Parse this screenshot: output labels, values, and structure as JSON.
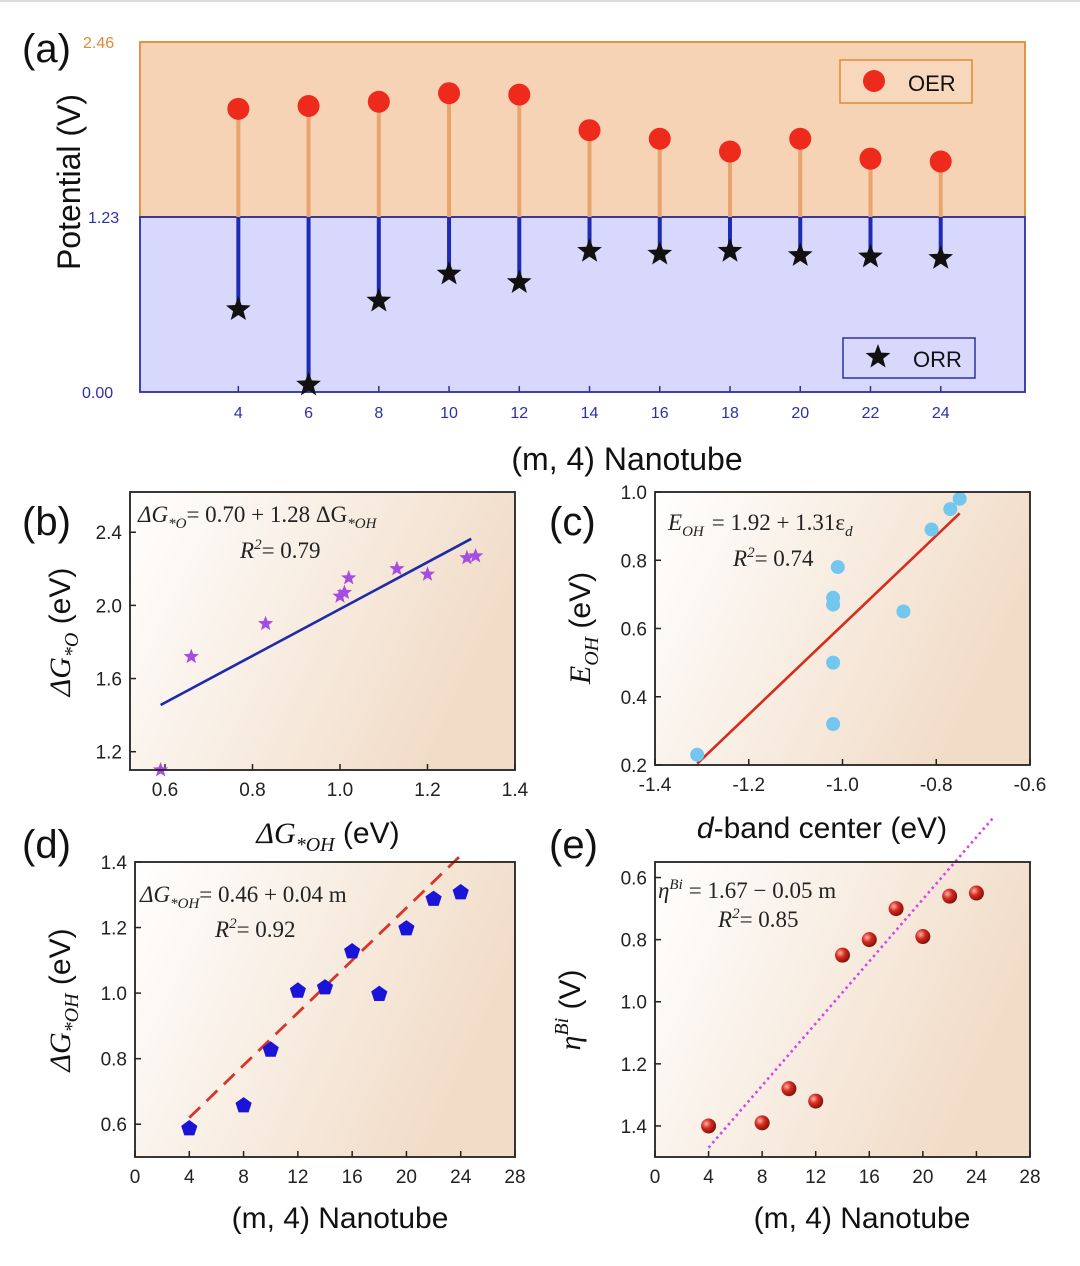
{
  "colors": {
    "oer_fill": "#f5d3b4",
    "orr_fill": "#d7d8fb",
    "oer_dot": "#ee2a1c",
    "oer_stem": "#e8a46c",
    "orr_stem": "#1d2bb5",
    "star": "#111111",
    "b_star": "#a64ce0",
    "b_line": "#1f2aa8",
    "c_dot": "#73c6ee",
    "c_line": "#d52c1c",
    "d_pent": "#1a14d8",
    "d_line": "#d8352a",
    "e_ball": "#d62a20",
    "e_line": "#d445e6",
    "axis_orange": "#e28a35",
    "axis_blue": "#2c30a6"
  },
  "chart_data": [
    {
      "id": "a",
      "panel_label": "(a)",
      "type": "scatter",
      "title": "",
      "xlabel": "(m, 4) Nanotube",
      "ylabel": "Potential (V)",
      "ylim": [
        0,
        2.46
      ],
      "xlim": [
        1.2,
        26.4
      ],
      "yticks": [
        "0.00",
        "1.23",
        "2.46"
      ],
      "xticks": [
        "4",
        "6",
        "8",
        "10",
        "12",
        "14",
        "16",
        "18",
        "20",
        "22",
        "24"
      ],
      "x": [
        4,
        6,
        8,
        10,
        12,
        14,
        16,
        18,
        20,
        22,
        24
      ],
      "series": [
        {
          "name": "OER",
          "values": [
            1.99,
            2.01,
            2.04,
            2.1,
            2.09,
            1.84,
            1.78,
            1.69,
            1.78,
            1.64,
            1.62
          ]
        },
        {
          "name": "ORR",
          "values": [
            0.58,
            0.05,
            0.64,
            0.83,
            0.77,
            0.99,
            0.97,
            0.99,
            0.96,
            0.95,
            0.94
          ]
        }
      ],
      "reference_line": 1.23,
      "legend": [
        "OER",
        "ORR"
      ]
    },
    {
      "id": "b",
      "panel_label": "(b)",
      "type": "scatter",
      "xlabel_main": "ΔG",
      "xlabel_sub": "*OH",
      "xlabel_unit": " (eV)",
      "ylabel_main": "ΔG",
      "ylabel_sub": "*O",
      "ylabel_unit": " (eV)",
      "xlim": [
        0.52,
        1.4
      ],
      "ylim": [
        1.1,
        2.62
      ],
      "xticks": [
        0.6,
        0.8,
        1.0,
        1.2,
        1.4
      ],
      "xtick_labels": [
        "0.6",
        "0.8",
        "1.0",
        "1.2",
        "1.4"
      ],
      "yticks": [
        1.2,
        1.6,
        2.0,
        2.4
      ],
      "ytick_labels": [
        "1.2",
        "1.6",
        "2.0",
        "2.4"
      ],
      "x": [
        0.59,
        0.66,
        0.83,
        1.0,
        1.01,
        1.02,
        1.13,
        1.2,
        1.29,
        1.31
      ],
      "y": [
        1.1,
        1.72,
        1.9,
        2.05,
        2.07,
        2.15,
        2.2,
        2.17,
        2.26,
        2.27
      ],
      "fit": {
        "intercept": 0.7,
        "slope": 1.28,
        "x_range": [
          0.59,
          1.3
        ]
      },
      "equation_lhs": "ΔG",
      "equation_lhs_sub": "*O",
      "equation_rhs": "= 0.70 + 1.28 ΔG",
      "equation_rhs_sub": "*OH",
      "r2_label": "R",
      "r2_value": "= 0.79"
    },
    {
      "id": "c",
      "panel_label": "(c)",
      "type": "scatter",
      "xlabel_italic": "d",
      "xlabel_rest": "-band center (eV)",
      "ylabel_main": "E",
      "ylabel_sub": "OH",
      "ylabel_unit": " (eV)",
      "xlim": [
        -1.4,
        -0.6
      ],
      "ylim": [
        0.2,
        1.0
      ],
      "xticks": [
        -1.4,
        -1.2,
        -1.0,
        -0.8,
        -0.6
      ],
      "xtick_labels": [
        "-1.4",
        "-1.2",
        "-1.0",
        "-0.8",
        "-0.6"
      ],
      "yticks": [
        0.2,
        0.4,
        0.6,
        0.8,
        1.0
      ],
      "ytick_labels": [
        "0.2",
        "0.4",
        "0.6",
        "0.8",
        "1.0"
      ],
      "x": [
        -1.31,
        -1.02,
        -1.02,
        -1.02,
        -1.02,
        -1.01,
        -0.87,
        -0.81,
        -0.77,
        -0.75
      ],
      "y": [
        0.23,
        0.32,
        0.5,
        0.67,
        0.69,
        0.78,
        0.65,
        0.89,
        0.95,
        0.98
      ],
      "fit": {
        "intercept": 1.92,
        "slope": 1.31,
        "x_range": [
          -1.31,
          -0.75
        ]
      },
      "equation_lhs": "E",
      "equation_lhs_sub": "OH",
      "equation_rhs": "= 1.92 + 1.31ε",
      "equation_rhs_sub": "d",
      "r2_label": "R",
      "r2_value": "= 0.74"
    },
    {
      "id": "d",
      "panel_label": "(d)",
      "type": "scatter",
      "xlabel": "(m, 4) Nanotube",
      "ylabel_main": "ΔG",
      "ylabel_sub": "*OH",
      "ylabel_unit": " (eV)",
      "xlim": [
        0,
        28
      ],
      "ylim": [
        0.5,
        1.4
      ],
      "xticks": [
        0,
        4,
        8,
        12,
        16,
        20,
        24,
        28
      ],
      "xtick_labels": [
        "0",
        "4",
        "8",
        "12",
        "16",
        "20",
        "24",
        "28"
      ],
      "yticks": [
        0.6,
        0.8,
        1.0,
        1.2,
        1.4
      ],
      "ytick_labels": [
        "0.6",
        "0.8",
        "1.0",
        "1.2",
        "1.4"
      ],
      "x": [
        4,
        8,
        10,
        12,
        14,
        16,
        18,
        20,
        22,
        24
      ],
      "y": [
        0.59,
        0.66,
        0.83,
        1.01,
        1.02,
        1.13,
        1.0,
        1.2,
        1.29,
        1.31
      ],
      "fit": {
        "intercept": 0.46,
        "slope": 0.04,
        "x_range": [
          4,
          24
        ]
      },
      "equation_lhs": "ΔG",
      "equation_lhs_sub": "*OH",
      "equation_rhs": "= 0.46 + 0.04 m",
      "r2_label": "R",
      "r2_value": "= 0.92"
    },
    {
      "id": "e",
      "panel_label": "(e)",
      "type": "scatter",
      "xlabel": "(m, 4) Nanotube",
      "ylabel_main": "η",
      "ylabel_sup": "Bi",
      "ylabel_unit": "  (V)",
      "xlim": [
        0,
        28
      ],
      "ylim": [
        0.55,
        1.5
      ],
      "y_inverted": true,
      "xticks": [
        0,
        4,
        8,
        12,
        16,
        20,
        24,
        28
      ],
      "xtick_labels": [
        "0",
        "4",
        "8",
        "12",
        "16",
        "20",
        "24",
        "28"
      ],
      "yticks": [
        0.6,
        0.8,
        1.0,
        1.2,
        1.4
      ],
      "ytick_labels": [
        "0.6",
        "0.8",
        "1.0",
        "1.2",
        "1.4"
      ],
      "x": [
        4,
        8,
        10,
        12,
        14,
        16,
        18,
        20,
        22,
        24
      ],
      "y": [
        1.4,
        1.39,
        1.28,
        1.32,
        0.85,
        0.8,
        0.7,
        0.79,
        0.66,
        0.65
      ],
      "fit": {
        "intercept": 1.67,
        "slope": -0.05,
        "x_range": [
          4,
          25.2
        ]
      },
      "equation_lhs": "η",
      "equation_lhs_sup": "Bi",
      "equation_rhs": "= 1.67 − 0.05 m",
      "r2_label": "R",
      "r2_value": "= 0.85"
    }
  ]
}
